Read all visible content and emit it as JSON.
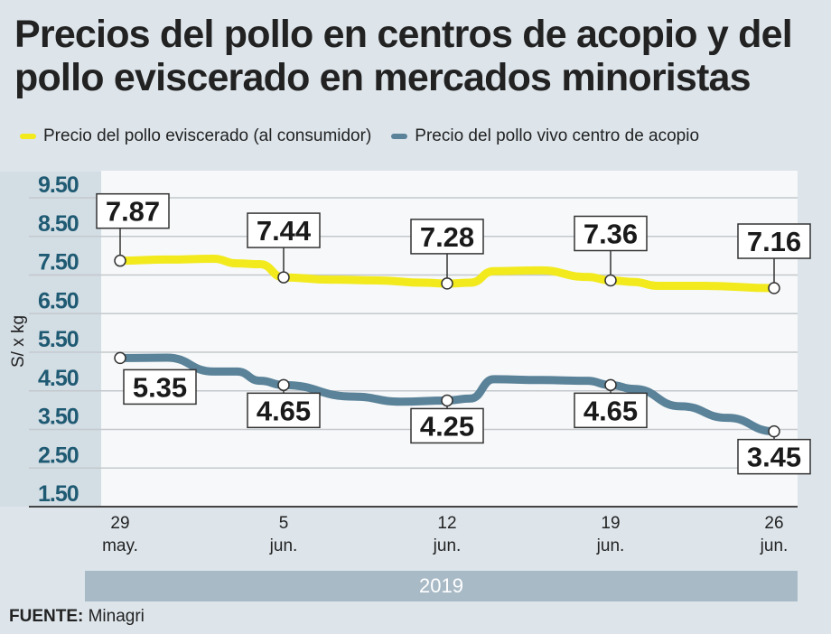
{
  "title": "Precios del pollo en centros de acopio y del pollo eviscerado en mercados minoristas",
  "source_label": "FUENTE:",
  "source": "Minagri",
  "chart_data": {
    "type": "line",
    "ylabel": "S/ x kg",
    "ylim": [
      1.5,
      9.5
    ],
    "yticks": [
      "9.50",
      "8.50",
      "7.50",
      "6.50",
      "5.50",
      "4.50",
      "3.50",
      "2.50",
      "1.50"
    ],
    "ytick_values": [
      9.5,
      8.5,
      7.5,
      6.5,
      5.5,
      4.5,
      3.5,
      2.5,
      1.5
    ],
    "grid": true,
    "legend_position": "top",
    "x_ticks": [
      {
        "day": 0,
        "line1": "29",
        "line2": "may."
      },
      {
        "day": 7,
        "line1": "5",
        "line2": "jun."
      },
      {
        "day": 14,
        "line1": "12",
        "line2": "jun."
      },
      {
        "day": 21,
        "line1": "19",
        "line2": "jun."
      },
      {
        "day": 28,
        "line1": "26",
        "line2": "jun."
      }
    ],
    "year_label": "2019",
    "series": [
      {
        "name": "Precio del pollo eviscerado (al consumidor)",
        "color": "#f2ea1c",
        "points": [
          [
            0,
            7.87
          ],
          [
            2,
            7.9
          ],
          [
            4,
            7.92
          ],
          [
            5,
            7.8
          ],
          [
            6,
            7.78
          ],
          [
            7,
            7.44
          ],
          [
            9,
            7.38
          ],
          [
            11,
            7.36
          ],
          [
            13,
            7.3
          ],
          [
            14,
            7.28
          ],
          [
            15,
            7.3
          ],
          [
            16,
            7.6
          ],
          [
            18,
            7.62
          ],
          [
            20,
            7.45
          ],
          [
            21,
            7.36
          ],
          [
            22,
            7.32
          ],
          [
            23,
            7.22
          ],
          [
            25,
            7.22
          ],
          [
            28,
            7.16
          ]
        ],
        "labels": [
          {
            "day": 0,
            "value": "7.87"
          },
          {
            "day": 7,
            "value": "7.44"
          },
          {
            "day": 14,
            "value": "7.28"
          },
          {
            "day": 21,
            "value": "7.36"
          },
          {
            "day": 28,
            "value": "7.16"
          }
        ]
      },
      {
        "name": "Precio del pollo vivo centro de acopio",
        "color": "#5a8299",
        "points": [
          [
            0,
            5.35
          ],
          [
            2,
            5.36
          ],
          [
            4,
            5.0
          ],
          [
            5,
            5.0
          ],
          [
            6,
            4.76
          ],
          [
            7,
            4.65
          ],
          [
            10,
            4.35
          ],
          [
            12,
            4.22
          ],
          [
            14,
            4.25
          ],
          [
            15,
            4.3
          ],
          [
            16,
            4.8
          ],
          [
            18,
            4.78
          ],
          [
            20,
            4.76
          ],
          [
            21,
            4.65
          ],
          [
            22,
            4.55
          ],
          [
            24,
            4.1
          ],
          [
            26,
            3.8
          ],
          [
            28,
            3.45
          ]
        ],
        "labels": [
          {
            "day": 0,
            "value": "5.35"
          },
          {
            "day": 7,
            "value": "4.65"
          },
          {
            "day": 14,
            "value": "4.25"
          },
          {
            "day": 21,
            "value": "4.65"
          },
          {
            "day": 28,
            "value": "3.45"
          }
        ]
      }
    ]
  }
}
